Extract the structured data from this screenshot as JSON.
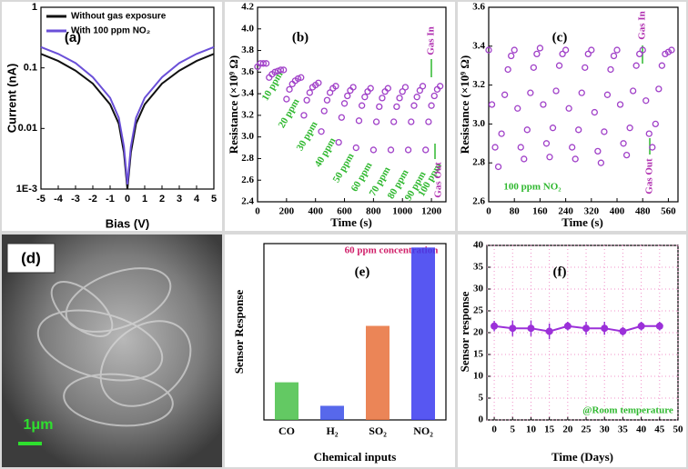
{
  "chart_data": [
    {
      "type": "line",
      "title": "(a)",
      "x_label": "Bias (V)",
      "y_label": "Current (nA)",
      "log_y": true,
      "legend": "upper left",
      "x": [
        -5,
        -4,
        -3,
        -2,
        -1,
        -0.5,
        -0.2,
        0,
        0.2,
        0.5,
        1,
        2,
        3,
        4,
        5
      ],
      "series": [
        {
          "name": "Without gas exposure",
          "color": "#111111",
          "values": [
            0.17,
            0.13,
            0.09,
            0.055,
            0.025,
            0.012,
            0.004,
            0.001,
            0.004,
            0.012,
            0.025,
            0.055,
            0.09,
            0.13,
            0.17
          ]
        },
        {
          "name": "With 100 ppm NO₂",
          "color": "#6a4fd8",
          "values": [
            0.22,
            0.17,
            0.12,
            0.07,
            0.032,
            0.015,
            0.005,
            0.0012,
            0.005,
            0.015,
            0.032,
            0.07,
            0.12,
            0.17,
            0.22
          ]
        }
      ],
      "xlim": [
        -5,
        5
      ],
      "xticks": [
        -5,
        -4,
        -3,
        -2,
        -1,
        0,
        1,
        2,
        3,
        4,
        5
      ],
      "ylim": [
        0.001,
        1
      ],
      "yticks": [
        {
          "value": 0.001,
          "label": "1E-3"
        },
        0.01,
        0.1,
        1
      ]
    },
    {
      "type": "scatter",
      "title": "(b)",
      "x_label": "Time (s)",
      "y_label": "Resistance (×10⁹ Ω)",
      "x": [
        0,
        20,
        40,
        60,
        80,
        100,
        120,
        140,
        160,
        180,
        200,
        220,
        240,
        260,
        280,
        300,
        320,
        340,
        360,
        380,
        400,
        420,
        440,
        460,
        480,
        500,
        520,
        540,
        560,
        580,
        600,
        620,
        640,
        660,
        680,
        700,
        720,
        740,
        760,
        780,
        800,
        820,
        840,
        860,
        880,
        900,
        920,
        940,
        960,
        980,
        1000,
        1020,
        1040,
        1060,
        1080,
        1100,
        1120,
        1140,
        1160,
        1180,
        1200,
        1220,
        1240,
        1260
      ],
      "series": [
        {
          "color": "#a040c8",
          "values": [
            3.65,
            3.68,
            3.68,
            3.68,
            3.55,
            3.58,
            3.6,
            3.61,
            3.62,
            3.62,
            3.35,
            3.44,
            3.49,
            3.52,
            3.54,
            3.55,
            3.2,
            3.34,
            3.41,
            3.46,
            3.48,
            3.5,
            3.05,
            3.24,
            3.34,
            3.41,
            3.45,
            3.47,
            2.95,
            3.18,
            3.31,
            3.38,
            3.43,
            3.46,
            2.9,
            3.15,
            3.29,
            3.37,
            3.42,
            3.45,
            2.88,
            3.14,
            3.28,
            3.36,
            3.42,
            3.45,
            2.88,
            3.14,
            3.28,
            3.36,
            3.42,
            3.46,
            2.88,
            3.14,
            3.29,
            3.37,
            3.43,
            3.47,
            2.88,
            3.14,
            3.29,
            3.38,
            3.44,
            3.47
          ]
        }
      ],
      "annotations": [
        {
          "text": "10 ppm",
          "color": "#2fb82f"
        },
        {
          "text": "20 ppm",
          "color": "#2fb82f"
        },
        {
          "text": "30 ppm",
          "color": "#2fb82f"
        },
        {
          "text": "40 ppm",
          "color": "#2fb82f"
        },
        {
          "text": "50 ppm",
          "color": "#2fb82f"
        },
        {
          "text": "60 ppm",
          "color": "#2fb82f"
        },
        {
          "text": "70 ppm",
          "color": "#2fb82f"
        },
        {
          "text": "80 ppm",
          "color": "#2fb82f"
        },
        {
          "text": "90 ppm",
          "color": "#2fb82f"
        },
        {
          "text": "100 ppm",
          "color": "#2fb82f"
        },
        {
          "text": "Gas In",
          "color": "#b030b0"
        },
        {
          "text": "Gas Out",
          "color": "#b030b0"
        }
      ],
      "xlim": [
        0,
        1300
      ],
      "xticks": [
        0,
        200,
        400,
        600,
        800,
        1000,
        1200
      ],
      "ylim": [
        2.4,
        4.2
      ],
      "yticks": [
        2.4,
        2.6,
        2.8,
        {
          "value": 3,
          "label": "3.0"
        },
        3.2,
        3.4,
        3.6,
        3.8,
        {
          "value": 4,
          "label": "4.0"
        },
        4.2
      ]
    },
    {
      "type": "scatter",
      "title": "(c)",
      "x_label": "Time (s)",
      "y_label": "Resistance (×10⁹ Ω)",
      "x": [
        0,
        10,
        20,
        30,
        40,
        50,
        60,
        70,
        80,
        90,
        100,
        110,
        120,
        130,
        140,
        150,
        160,
        170,
        180,
        190,
        200,
        210,
        220,
        230,
        240,
        250,
        260,
        270,
        280,
        290,
        300,
        310,
        320,
        330,
        340,
        350,
        360,
        370,
        380,
        390,
        400,
        410,
        420,
        430,
        440,
        450,
        460,
        470,
        480,
        490,
        500,
        510,
        520,
        530,
        540,
        550,
        560,
        570
      ],
      "series": [
        {
          "color": "#a040c8",
          "values": [
            3.38,
            3.1,
            2.88,
            2.78,
            2.95,
            3.15,
            3.28,
            3.35,
            3.38,
            3.08,
            2.88,
            2.82,
            2.97,
            3.16,
            3.29,
            3.36,
            3.39,
            3.1,
            2.9,
            2.83,
            2.98,
            3.17,
            3.3,
            3.36,
            3.38,
            3.08,
            2.88,
            2.82,
            2.97,
            3.16,
            3.29,
            3.36,
            3.38,
            3.06,
            2.86,
            2.8,
            2.96,
            3.15,
            3.28,
            3.35,
            3.38,
            3.1,
            2.9,
            2.84,
            2.98,
            3.17,
            3.3,
            3.36,
            3.38,
            3.12,
            2.95,
            2.88,
            3.0,
            3.18,
            3.3,
            3.36,
            3.37,
            3.38
          ]
        }
      ],
      "annotations": [
        {
          "text": "100 ppm NO₂",
          "color": "#2fb82f"
        },
        {
          "text": "Gas In",
          "color": "#b030b0"
        },
        {
          "text": "Gas Out",
          "color": "#b030b0"
        }
      ],
      "xlim": [
        0,
        590
      ],
      "xticks": [
        0,
        80,
        160,
        240,
        320,
        400,
        480,
        560
      ],
      "ylim": [
        2.6,
        3.6
      ],
      "yticks": [
        2.6,
        2.8,
        {
          "value": 3,
          "label": "3.0"
        },
        3.2,
        3.4,
        3.6
      ]
    },
    {
      "type": "image",
      "title": "(d)",
      "scale_label": "1μm"
    },
    {
      "type": "bar",
      "title": "(e)",
      "x_label": "Chemical inputs",
      "y_label": "Sensor Response",
      "categories": [
        "CO",
        "H₂",
        "SO₂",
        "NO₂"
      ],
      "values": [
        4.8,
        1.8,
        12,
        22
      ],
      "colors": [
        "#48c048",
        "#3a4ee8",
        "#e8703a",
        "#3a3af0"
      ],
      "annotations": [
        {
          "text": "60 ppm concentration",
          "color": "#d0206a"
        }
      ],
      "ylim": [
        0,
        22.5
      ]
    },
    {
      "type": "line",
      "title": "(f)",
      "x_label": "Time (Days)",
      "y_label": "Sensor response",
      "grid": true,
      "grid_color": "#f090c8",
      "x": [
        0,
        5,
        10,
        15,
        20,
        25,
        30,
        35,
        40,
        45
      ],
      "series": [
        {
          "color": "#9b30d9",
          "marker": "circle",
          "values": [
            21.5,
            21,
            21,
            20.3,
            21.5,
            21,
            21,
            20.3,
            21.5,
            21.5
          ],
          "errors": [
            1.2,
            1.8,
            1.8,
            1.8,
            1,
            1.5,
            1.5,
            1,
            1,
            1
          ]
        }
      ],
      "annotations": [
        {
          "text": "@Room temperature",
          "color": "#2fb82f"
        }
      ],
      "xlim": [
        -2,
        50
      ],
      "xticks": [
        0,
        5,
        10,
        15,
        20,
        25,
        30,
        35,
        40,
        45,
        50
      ],
      "ylim": [
        0,
        40
      ],
      "yticks": [
        0,
        5,
        10,
        15,
        20,
        25,
        30,
        35,
        40
      ]
    }
  ]
}
